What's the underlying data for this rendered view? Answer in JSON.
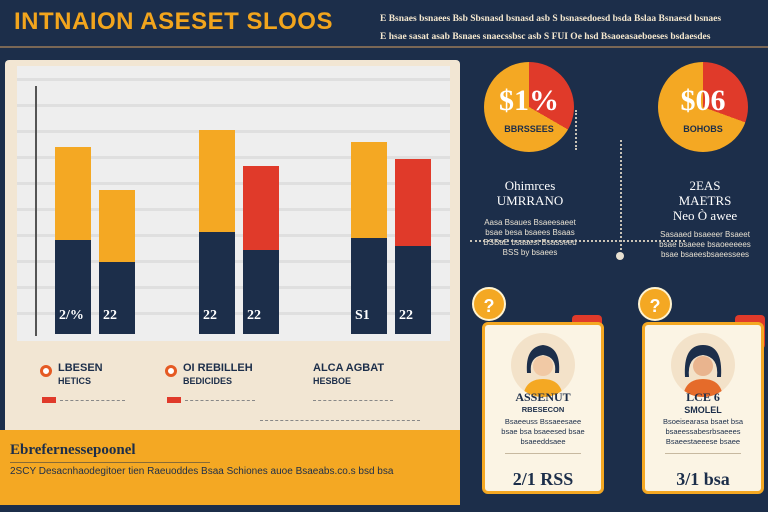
{
  "header": {
    "title": "INTNAION ASESET SLOOS",
    "lines": [
      "E Bsnaes bsnaees Bsb Sbsnasd bsnasd asb S bsnasedoesd bsda Bslaa Bsnaesd bsnaes",
      "E hsae sasat asab Bsnaes snaecssbsc asb S FUI Oe hsd Bsaoeasaeboeses bsdaesdes"
    ]
  },
  "colors": {
    "navy": "#1c2e4a",
    "orange": "#f4a823",
    "red": "#e03a2a",
    "cream": "#f2e6d3"
  },
  "chart_data": {
    "type": "bar",
    "categories": [
      "2/%",
      "22",
      "22",
      "22",
      "S1",
      "22"
    ],
    "series": [
      {
        "name": "",
        "values": [
          78,
          60,
          85,
          70,
          80,
          73
        ]
      }
    ],
    "value_labels": [
      "2/%",
      "22",
      "22",
      "22",
      "S1",
      "22"
    ]
  },
  "legend": [
    {
      "title": "LBESEN",
      "sub": "HETICS"
    },
    {
      "title": "OI REBILLEH",
      "sub": "BEDICIDES"
    },
    {
      "title": "ALCA AGBAT",
      "sub": "HESBOE"
    }
  ],
  "footer": {
    "title": "Ebrefernessepoonel",
    "text": "2SCY Desacnhaodegitoer tien Raeuoddes Bsaa Schiones auoe Bsaeabs.co.s bsd bsa"
  },
  "stats": [
    {
      "value": "$1%",
      "sub": "BBRSSEES",
      "title": "Ohimrces\nUMRRANO",
      "small": "Aasa Bsaues Bsaeesaeet\nbsae besa bsaees Bsaas\nBSBaE bsaaest Bsasseed\nBSS by bsaees"
    },
    {
      "value": "$06",
      "sub": "BOHOBS",
      "title": "2EAS\nMAETRS\nNeo Ò awee",
      "small": "Sasaaed bsaeeer Bsaeet\nbsae bsaeee bsaoeeeees\nbsae bsaeesbsaeessees"
    }
  ],
  "cards": [
    {
      "badge": "?",
      "name": "ASSENUT",
      "role": "RBESECON",
      "desc": "Bsaeeuss Bssaeesaee\nbsae bsa bsaeesed bsae\nbsaeeddsaee",
      "value": "2/1 RSS"
    },
    {
      "badge": "?",
      "name": "LCE 6",
      "role": "SMOLEL",
      "desc": "Bsoeisearasa bsaet bsa\nbsaeessabesrbsaeees\nBsaeestaeeese bsaee",
      "value": "3/1 bsa"
    }
  ]
}
